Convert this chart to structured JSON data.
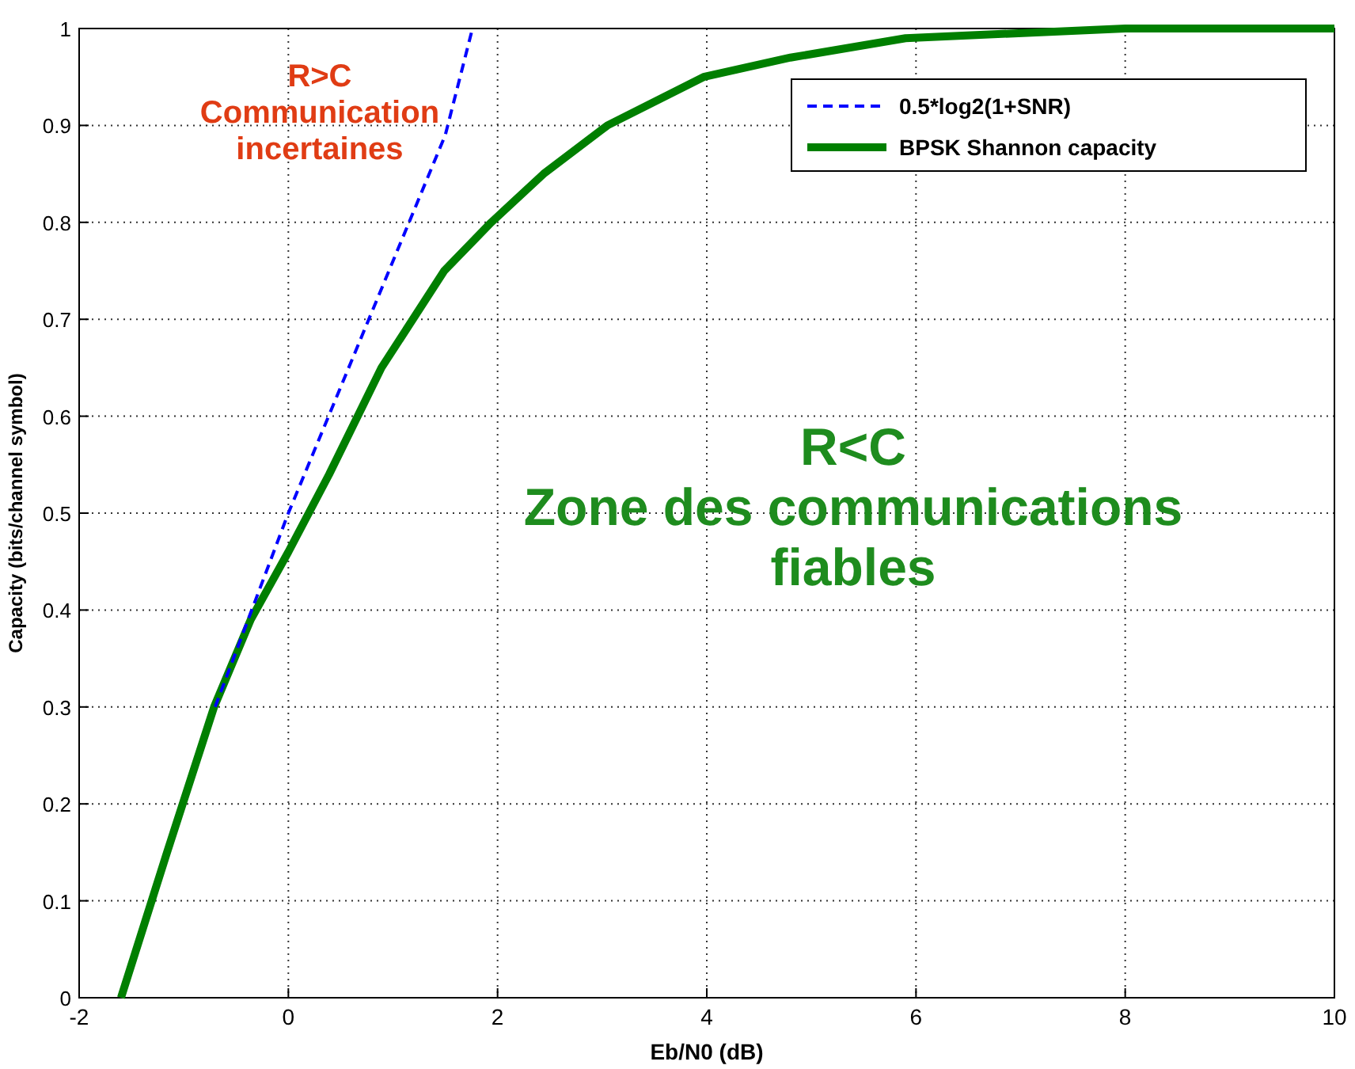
{
  "chart_data": {
    "type": "line",
    "xlabel": "Eb/N0 (dB)",
    "ylabel": "Capacity (bits/channel symbol)",
    "xlim": [
      -2,
      10
    ],
    "xticks": [
      -2,
      0,
      2,
      4,
      6,
      8,
      10
    ],
    "ylim": [
      0,
      1
    ],
    "yticks": [
      0,
      0.1,
      0.2,
      0.3,
      0.4,
      0.5,
      0.6,
      0.7,
      0.8,
      0.9,
      1
    ],
    "grid": true,
    "legend": "top right",
    "series": [
      {
        "name": "0.5*log2(1+SNR)",
        "color": "#0000ff",
        "line_style": "dashed",
        "x": [
          -0.7,
          0,
          0.5,
          1,
          1.5,
          1.76
        ],
        "values": [
          0.3,
          0.5,
          0.63,
          0.76,
          0.89,
          1.0
        ]
      },
      {
        "name": "BPSK Shannon capacity",
        "color": "#007f00",
        "line_style": "solid",
        "x": [
          -1.6,
          -1.16,
          -0.71,
          -0.36,
          0,
          0.39,
          0.89,
          1.49,
          1.94,
          2.44,
          3.05,
          3.97,
          4.8,
          5.9,
          8,
          10
        ],
        "values": [
          0,
          0.15,
          0.3,
          0.39,
          0.46,
          0.54,
          0.65,
          0.75,
          0.8,
          0.85,
          0.9,
          0.95,
          0.97,
          0.99,
          1,
          1
        ]
      }
    ],
    "annotations": [
      "R>C\nCommunication\nincertaines",
      "R<C\nZone des communications\nfiables"
    ]
  }
}
